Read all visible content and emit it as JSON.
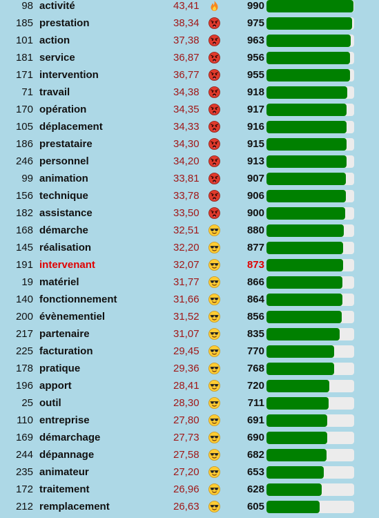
{
  "rows": [
    {
      "rank": "98",
      "word": "activité",
      "score": "43,41",
      "icon": "fire-icon",
      "value": "990"
    },
    {
      "rank": "185",
      "word": "prestation",
      "score": "38,34",
      "icon": "angry-face-icon",
      "value": "975"
    },
    {
      "rank": "101",
      "word": "action",
      "score": "37,38",
      "icon": "angry-face-icon",
      "value": "963"
    },
    {
      "rank": "181",
      "word": "service",
      "score": "36,87",
      "icon": "angry-face-icon",
      "value": "956"
    },
    {
      "rank": "171",
      "word": "intervention",
      "score": "36,77",
      "icon": "angry-face-icon",
      "value": "955"
    },
    {
      "rank": "71",
      "word": "travail",
      "score": "34,38",
      "icon": "angry-face-icon",
      "value": "918"
    },
    {
      "rank": "170",
      "word": "opération",
      "score": "34,35",
      "icon": "angry-face-icon",
      "value": "917"
    },
    {
      "rank": "105",
      "word": "déplacement",
      "score": "34,33",
      "icon": "angry-face-icon",
      "value": "916"
    },
    {
      "rank": "186",
      "word": "prestataire",
      "score": "34,30",
      "icon": "angry-face-icon",
      "value": "915"
    },
    {
      "rank": "246",
      "word": "personnel",
      "score": "34,20",
      "icon": "angry-face-icon",
      "value": "913"
    },
    {
      "rank": "99",
      "word": "animation",
      "score": "33,81",
      "icon": "angry-face-icon",
      "value": "907"
    },
    {
      "rank": "156",
      "word": "technique",
      "score": "33,78",
      "icon": "angry-face-icon",
      "value": "906"
    },
    {
      "rank": "182",
      "word": "assistance",
      "score": "33,50",
      "icon": "angry-face-icon",
      "value": "900"
    },
    {
      "rank": "168",
      "word": "démarche",
      "score": "32,51",
      "icon": "sunglasses-face-icon",
      "value": "880"
    },
    {
      "rank": "145",
      "word": "réalisation",
      "score": "32,20",
      "icon": "sunglasses-face-icon",
      "value": "877"
    },
    {
      "rank": "191",
      "word": "intervenant",
      "score": "32,07",
      "icon": "sunglasses-face-icon",
      "value": "873",
      "highlight": true
    },
    {
      "rank": "19",
      "word": "matériel",
      "score": "31,77",
      "icon": "sunglasses-face-icon",
      "value": "866"
    },
    {
      "rank": "140",
      "word": "fonctionnement",
      "score": "31,66",
      "icon": "sunglasses-face-icon",
      "value": "864"
    },
    {
      "rank": "200",
      "word": "évènementiel",
      "score": "31,52",
      "icon": "sunglasses-face-icon",
      "value": "856"
    },
    {
      "rank": "217",
      "word": "partenaire",
      "score": "31,07",
      "icon": "sunglasses-face-icon",
      "value": "835"
    },
    {
      "rank": "225",
      "word": "facturation",
      "score": "29,45",
      "icon": "sunglasses-face-icon",
      "value": "770"
    },
    {
      "rank": "178",
      "word": "pratique",
      "score": "29,36",
      "icon": "sunglasses-face-icon",
      "value": "768"
    },
    {
      "rank": "196",
      "word": "apport",
      "score": "28,41",
      "icon": "sunglasses-face-icon",
      "value": "720"
    },
    {
      "rank": "25",
      "word": "outil",
      "score": "28,30",
      "icon": "sunglasses-face-icon",
      "value": "711"
    },
    {
      "rank": "110",
      "word": "entreprise",
      "score": "27,80",
      "icon": "sunglasses-face-icon",
      "value": "691"
    },
    {
      "rank": "169",
      "word": "démarchage",
      "score": "27,73",
      "icon": "sunglasses-face-icon",
      "value": "690"
    },
    {
      "rank": "244",
      "word": "dépannage",
      "score": "27,58",
      "icon": "sunglasses-face-icon",
      "value": "682"
    },
    {
      "rank": "235",
      "word": "animateur",
      "score": "27,20",
      "icon": "sunglasses-face-icon",
      "value": "653"
    },
    {
      "rank": "172",
      "word": "traitement",
      "score": "26,96",
      "icon": "sunglasses-face-icon",
      "value": "628"
    },
    {
      "rank": "212",
      "word": "remplacement",
      "score": "26,63",
      "icon": "sunglasses-face-icon",
      "value": "605"
    }
  ],
  "bar_max": 1000,
  "colors": {
    "background": "#add8e6",
    "bar_fill": "#008000",
    "bar_track": "#ececec",
    "score_text": "#a01818",
    "highlight_text": "#e00000"
  }
}
